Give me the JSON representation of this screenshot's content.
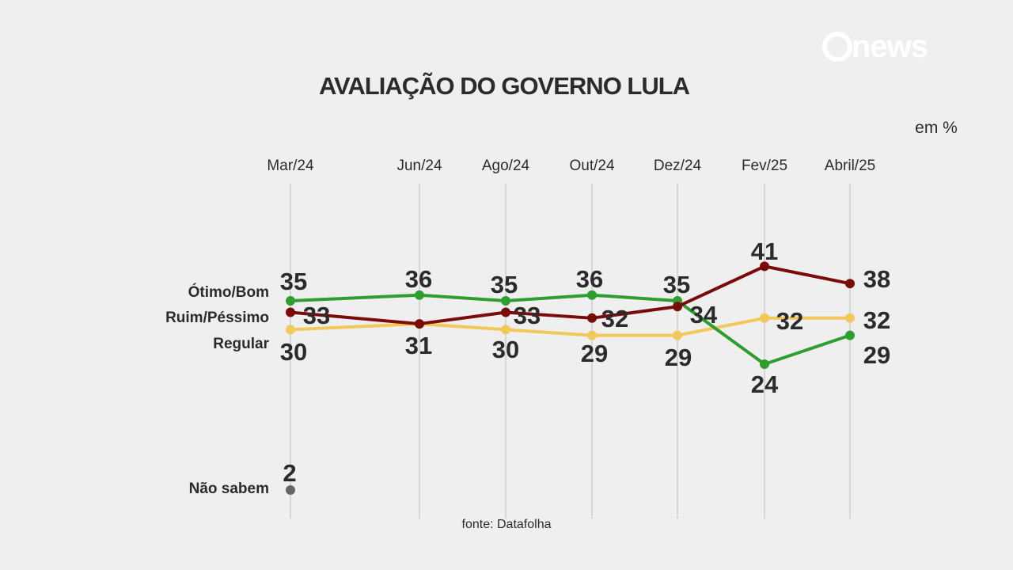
{
  "logo": "news",
  "chart_data": {
    "type": "line",
    "title": "AVALIAÇÃO DO GOVERNO LULA",
    "unit": "em %",
    "categories": [
      "Mar/24",
      "Jun/24",
      "Ago/24",
      "Out/24",
      "Dez/24",
      "Fev/25",
      "Abril/25"
    ],
    "series": [
      {
        "name": "Ótimo/Bom",
        "color": "#2e9e2e",
        "values": [
          35,
          36,
          35,
          36,
          35,
          24,
          29
        ]
      },
      {
        "name": "Ruim/Péssimo",
        "color": "#7a0b0b",
        "values": [
          33,
          31,
          33,
          32,
          34,
          41,
          38
        ]
      },
      {
        "name": "Regular",
        "color": "#f2c85b",
        "values": [
          30,
          31,
          30,
          29,
          29,
          32,
          32
        ]
      }
    ],
    "extra": {
      "name": "Não sabem",
      "category": "Mar/24",
      "value": 2,
      "color": "#666666"
    },
    "source": "fonte: Datafolha",
    "grid": "vertical"
  }
}
